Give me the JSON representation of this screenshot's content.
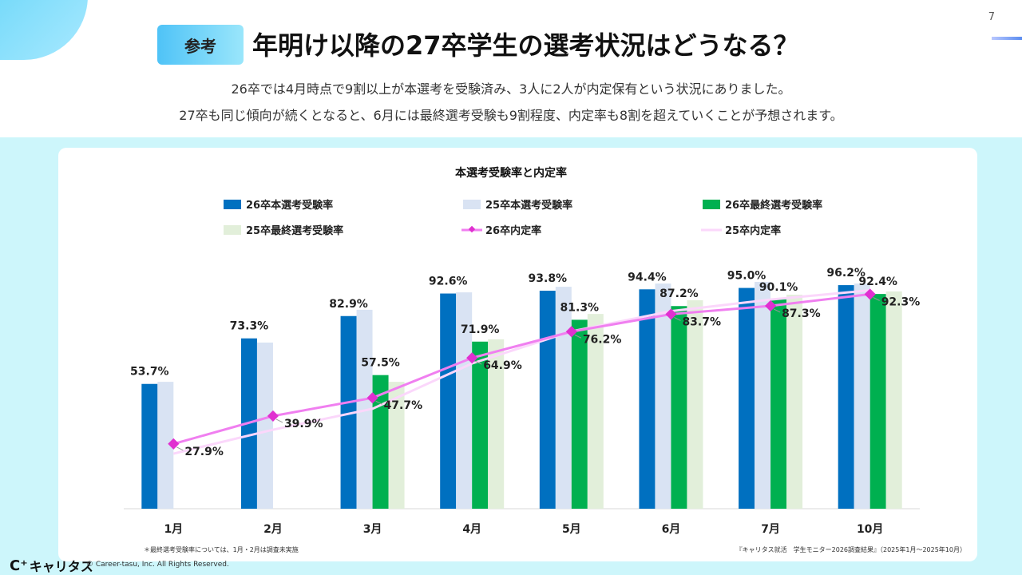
{
  "page_number": "7",
  "header": {
    "badge": "参考",
    "title": "年明け以降の27卒学生の選考状況はどうなる？",
    "subtitle_lines": [
      "26卒では4月時点で9割以上が本選考を受験済み、3人に2人が内定保有という状況にありました。",
      "27卒も同じ傾向が続くとなると、6月には最終選考受験も9割程度、内定率も8割を超えていくことが予想されます。"
    ]
  },
  "footer": {
    "logo": "キャリタス",
    "copyright": "© Career-tasu, Inc. All Rights Reserved.",
    "note_left": "＊最終選考受験率については、1月・2月は調査未実施",
    "note_right": "『キャリタス就活　学生モニター2026調査結果』（2025年1月～2025年10月）"
  },
  "colors": {
    "s26_main": "#0070c0",
    "s25_main": "#d9e3f3",
    "s26_final": "#00b050",
    "s25_final": "#e2efda",
    "s26_offer": "#f07ff0",
    "s26_offer_marker": "#e030d0",
    "s25_offer": "#fbd7fb",
    "background": "#cdf6fb"
  },
  "chart_data": {
    "type": "bar",
    "title": "本選考受験率と内定率",
    "categories": [
      "1月",
      "2月",
      "3月",
      "4月",
      "5月",
      "6月",
      "7月",
      "10月"
    ],
    "ylim": [
      0,
      100
    ],
    "grid": false,
    "legend_position": "top",
    "series": [
      {
        "name": "26卒本選考受験率",
        "type": "bar",
        "values": [
          53.7,
          73.3,
          82.9,
          92.6,
          93.8,
          94.4,
          95.0,
          96.2
        ],
        "labels": true
      },
      {
        "name": "25卒本選考受験率",
        "type": "bar",
        "values": [
          54.6,
          71.5,
          85.6,
          93.1,
          95.5,
          96.9,
          97.6,
          96.9
        ],
        "labels": false
      },
      {
        "name": "26卒最終選考受験率",
        "type": "bar",
        "values": [
          null,
          null,
          57.5,
          71.9,
          81.3,
          87.2,
          90.1,
          92.4
        ],
        "labels": true
      },
      {
        "name": "25卒最終選考受験率",
        "type": "bar",
        "values": [
          null,
          null,
          54.6,
          72.9,
          83.8,
          89.7,
          92.1,
          93.5
        ],
        "labels": false
      },
      {
        "name": "26卒内定率",
        "type": "line",
        "values": [
          27.9,
          39.9,
          47.7,
          64.9,
          76.2,
          83.7,
          87.3,
          92.3
        ],
        "labels": true
      },
      {
        "name": "25卒内定率",
        "type": "line",
        "values": [
          23.7,
          34.0,
          43.0,
          62.5,
          76.3,
          85.0,
          90.0,
          94.0
        ],
        "labels": false
      }
    ]
  }
}
